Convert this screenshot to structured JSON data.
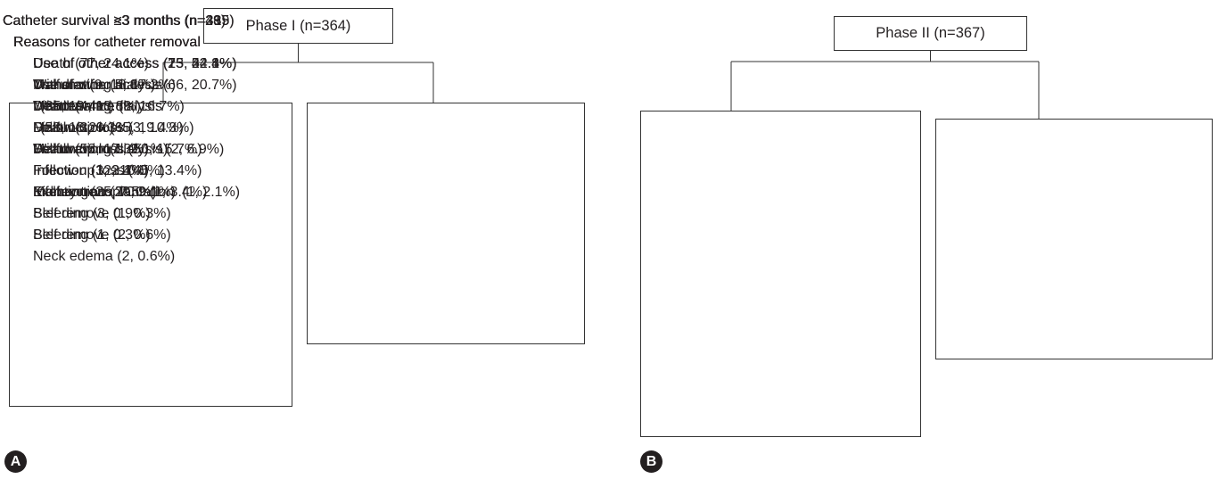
{
  "panels": [
    {
      "label": "A",
      "root": "Phase I (n=364)",
      "branches": [
        {
          "title": "Catheter survival <3 months (n=335)",
          "heading": "Reasons for catheter removal",
          "items": [
            "Use of other access (75, 22.4%)",
            [
              "Withdrawing dialysis",
              "(65, 19.4%)"
            ],
            "Malfunction (65, 19.4%)",
            "Death (58, 17.3%)",
            "Follow-up loss (45, 13.4%)",
            "Infection (25, 7.5%)",
            "Self remove (1, 0.3%)",
            "Bleeding (1, 0.3%)"
          ]
        },
        {
          "title": "Catheter survival ≥3 months (n=29)",
          "heading": "Reasons for catheter removal",
          "items": [
            "Use of other access (13, 44.8%)",
            "Malfunction (5, 17.2%)",
            "Death (4, 13.8%)",
            "Follow-up loss (3, 10.3%)",
            "Withdrawing dialysis (2, 6.9%)",
            "Infection (1, 3.4%)",
            "Exchange to TCC (1, 3.4%)"
          ]
        }
      ]
    },
    {
      "label": "B",
      "root": "Phase II (n=367)",
      "branches": [
        {
          "title": "Catheter survival <3 months (n=319)",
          "heading": "Reasons for catheter removal",
          "items": [
            "Death (77, 24.1%)",
            "Use of other access (66, 20.7%)",
            [
              "Withdrawing dialysis",
              "(58, 18.2%)"
            ],
            "Follow-up loss (50, 15.7%)",
            "Infection (32, 10.0%)",
            "Malfunction (29, 9.1%)",
            "Bleeding (3, 0.9%)",
            "Self remove (2, 0.6%)",
            "Neck edema (2, 0.6%)"
          ]
        },
        {
          "title": "Catheter survival ≥3 months (n=48)",
          "heading": "Reasons for catheter removal",
          "items": [
            "Use of other access (25, 52.1%)",
            "Transfer (9, 18.8%)",
            "Maintenance (8, 16.7%)",
            "Death (3, 6.3%)",
            "Malfunction (1, 2.1%)",
            "Infection (1, 2.1%)",
            "Kidney transplantation  (1, 2.1%)"
          ]
        }
      ]
    }
  ]
}
